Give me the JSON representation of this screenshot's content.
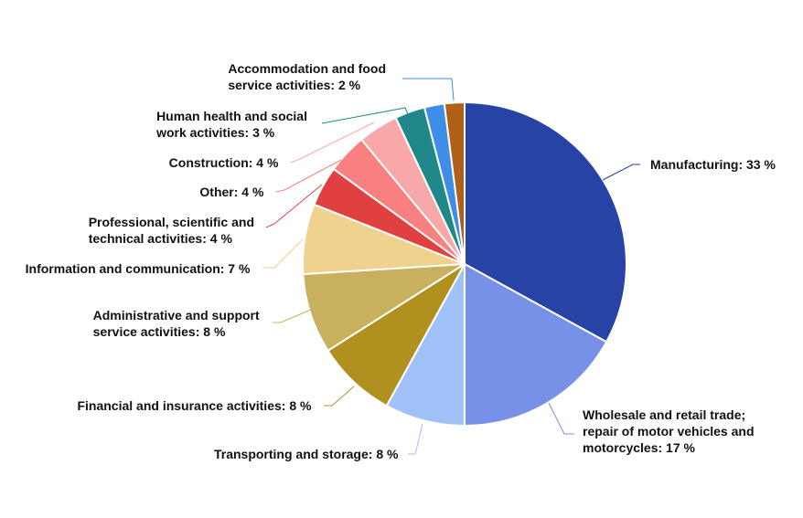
{
  "chart_data": {
    "type": "pie",
    "unit": "%",
    "start_angle_deg": 0,
    "direction": "clockwise",
    "slices": [
      {
        "label": [
          "Manufacturing: 33 %"
        ],
        "value": 33,
        "color": "#2743a6"
      },
      {
        "label": [
          "Wholesale and retail trade;",
          "repair of motor vehicles and",
          "motorcycles: 17 %"
        ],
        "value": 17,
        "color": "#7790e8"
      },
      {
        "label": [
          "Transporting and storage: 8 %"
        ],
        "value": 8,
        "color": "#a0c0f8"
      },
      {
        "label": [
          "Financial and insurance activities: 8 %"
        ],
        "value": 8,
        "color": "#b0901e"
      },
      {
        "label": [
          "Administrative and support",
          "service activities: 8 %"
        ],
        "value": 8,
        "color": "#c8b05e"
      },
      {
        "label": [
          "Information and communication: 7 %"
        ],
        "value": 7,
        "color": "#f0d28e"
      },
      {
        "label": [
          "Professional, scientific and",
          "technical activities: 4 %"
        ],
        "value": 4,
        "color": "#e04040"
      },
      {
        "label": [
          "Other: 4 %"
        ],
        "value": 4,
        "color": "#f88080"
      },
      {
        "label": [
          "Construction: 4 %"
        ],
        "value": 4,
        "color": "#f8a8a8"
      },
      {
        "label": [
          "Human health and social",
          "work activities: 3 %"
        ],
        "value": 3,
        "color": "#208888"
      },
      {
        "label": [
          "Accommodation and food",
          "service activities: 2 %"
        ],
        "value": 2,
        "color": "#3e8ee8"
      },
      {
        "label": [],
        "value": 2,
        "color": "#b06018"
      }
    ],
    "legend": "none"
  }
}
